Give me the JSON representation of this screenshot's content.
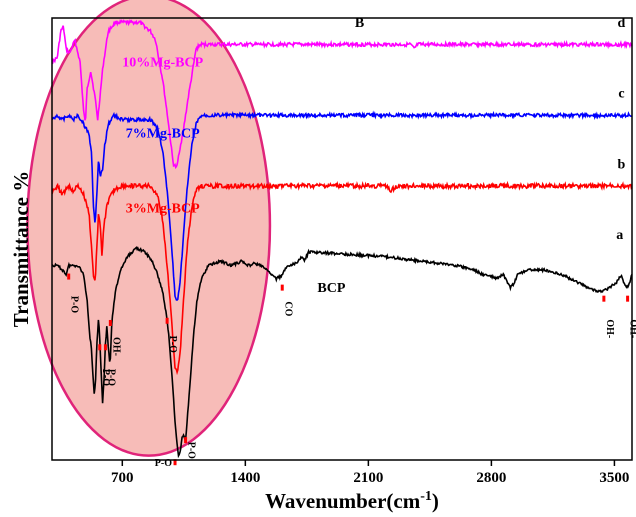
{
  "chart_data": {
    "type": "line",
    "xlabel": "Wavenumber(cm",
    "xlabel_sup": "-1",
    "xlabel_close": ")",
    "ylabel": "Transmittance %",
    "xlim": [
      300,
      3600
    ],
    "x_ticks": [
      700,
      1400,
      2100,
      2800,
      3500
    ],
    "tick_labels": [
      "700",
      "1400",
      "2100",
      "2800",
      "3500"
    ],
    "series": [
      {
        "name": "10%Mg-BCP",
        "letter": "d",
        "color": "#ff00ff",
        "baseline": 0.06,
        "noise": 0.004,
        "points": [
          [
            300,
            0.1
          ],
          [
            330,
            0.09
          ],
          [
            350,
            0.03
          ],
          [
            365,
            0.02
          ],
          [
            380,
            0.07
          ],
          [
            400,
            0.08
          ],
          [
            430,
            0.05
          ],
          [
            460,
            0.1
          ],
          [
            480,
            0.21
          ],
          [
            490,
            0.24
          ],
          [
            500,
            0.16
          ],
          [
            520,
            0.12
          ],
          [
            545,
            0.18
          ],
          [
            560,
            0.23
          ],
          [
            575,
            0.17
          ],
          [
            590,
            0.11
          ],
          [
            620,
            0.03
          ],
          [
            660,
            0.01
          ],
          [
            720,
            0.01
          ],
          [
            800,
            0.01
          ],
          [
            860,
            0.03
          ],
          [
            890,
            0.05
          ],
          [
            910,
            0.1
          ],
          [
            930,
            0.14
          ],
          [
            960,
            0.23
          ],
          [
            990,
            0.33
          ],
          [
            1010,
            0.34
          ],
          [
            1025,
            0.3
          ],
          [
            1045,
            0.26
          ],
          [
            1075,
            0.18
          ],
          [
            1100,
            0.12
          ],
          [
            1120,
            0.07
          ],
          [
            1145,
            0.06
          ],
          [
            1200,
            0.06
          ],
          [
            2340,
            0.06
          ],
          [
            2360,
            0.07
          ],
          [
            2380,
            0.06
          ],
          [
            3600,
            0.06
          ]
        ]
      },
      {
        "name": "7%Mg-BCP",
        "letter": "c",
        "color": "#0000ff",
        "baseline": 0.22,
        "noise": 0.004,
        "points": [
          [
            300,
            0.23
          ],
          [
            330,
            0.22
          ],
          [
            360,
            0.23
          ],
          [
            390,
            0.22
          ],
          [
            420,
            0.23
          ],
          [
            450,
            0.22
          ],
          [
            480,
            0.24
          ],
          [
            510,
            0.26
          ],
          [
            525,
            0.31
          ],
          [
            535,
            0.42
          ],
          [
            545,
            0.47
          ],
          [
            555,
            0.4
          ],
          [
            565,
            0.32
          ],
          [
            575,
            0.36
          ],
          [
            590,
            0.34
          ],
          [
            600,
            0.29
          ],
          [
            620,
            0.24
          ],
          [
            650,
            0.22
          ],
          [
            700,
            0.23
          ],
          [
            860,
            0.23
          ],
          [
            900,
            0.25
          ],
          [
            930,
            0.3
          ],
          [
            960,
            0.41
          ],
          [
            985,
            0.54
          ],
          [
            1000,
            0.63
          ],
          [
            1015,
            0.64
          ],
          [
            1030,
            0.59
          ],
          [
            1050,
            0.48
          ],
          [
            1070,
            0.38
          ],
          [
            1095,
            0.29
          ],
          [
            1120,
            0.24
          ],
          [
            1150,
            0.22
          ],
          [
            1200,
            0.22
          ],
          [
            3600,
            0.22
          ]
        ]
      },
      {
        "name": "3%Mg-BCP",
        "letter": "b",
        "color": "#ff0000",
        "baseline": 0.38,
        "noise": 0.005,
        "points": [
          [
            300,
            0.39
          ],
          [
            330,
            0.38
          ],
          [
            360,
            0.4
          ],
          [
            390,
            0.38
          ],
          [
            420,
            0.39
          ],
          [
            450,
            0.38
          ],
          [
            480,
            0.4
          ],
          [
            510,
            0.44
          ],
          [
            525,
            0.52
          ],
          [
            535,
            0.58
          ],
          [
            545,
            0.6
          ],
          [
            555,
            0.52
          ],
          [
            565,
            0.44
          ],
          [
            575,
            0.47
          ],
          [
            585,
            0.54
          ],
          [
            595,
            0.47
          ],
          [
            615,
            0.42
          ],
          [
            650,
            0.39
          ],
          [
            700,
            0.38
          ],
          [
            860,
            0.38
          ],
          [
            900,
            0.4
          ],
          [
            930,
            0.46
          ],
          [
            960,
            0.58
          ],
          [
            985,
            0.71
          ],
          [
            1000,
            0.79
          ],
          [
            1015,
            0.8
          ],
          [
            1030,
            0.75
          ],
          [
            1050,
            0.63
          ],
          [
            1070,
            0.51
          ],
          [
            1095,
            0.43
          ],
          [
            1120,
            0.39
          ],
          [
            1150,
            0.38
          ],
          [
            1200,
            0.38
          ],
          [
            2200,
            0.38
          ],
          [
            2230,
            0.39
          ],
          [
            2260,
            0.38
          ],
          [
            3600,
            0.38
          ]
        ]
      },
      {
        "name": "BCP",
        "letter": "a",
        "color": "#000000",
        "baseline": 0.55,
        "noise": 0.003,
        "points": [
          [
            300,
            0.56
          ],
          [
            330,
            0.56
          ],
          [
            360,
            0.57
          ],
          [
            380,
            0.58
          ],
          [
            395,
            0.56
          ],
          [
            420,
            0.56
          ],
          [
            450,
            0.56
          ],
          [
            480,
            0.58
          ],
          [
            500,
            0.64
          ],
          [
            515,
            0.72
          ],
          [
            525,
            0.75
          ],
          [
            530,
            0.79
          ],
          [
            540,
            0.85
          ],
          [
            548,
            0.82
          ],
          [
            555,
            0.74
          ],
          [
            565,
            0.68
          ],
          [
            572,
            0.73
          ],
          [
            580,
            0.8
          ],
          [
            588,
            0.87
          ],
          [
            596,
            0.82
          ],
          [
            604,
            0.74
          ],
          [
            612,
            0.7
          ],
          [
            620,
            0.74
          ],
          [
            630,
            0.79
          ],
          [
            640,
            0.69
          ],
          [
            660,
            0.62
          ],
          [
            690,
            0.57
          ],
          [
            730,
            0.54
          ],
          [
            780,
            0.52
          ],
          [
            830,
            0.53
          ],
          [
            870,
            0.55
          ],
          [
            900,
            0.58
          ],
          [
            930,
            0.62
          ],
          [
            950,
            0.67
          ],
          [
            965,
            0.72
          ],
          [
            985,
            0.82
          ],
          [
            1000,
            0.91
          ],
          [
            1010,
            0.96
          ],
          [
            1020,
            0.99
          ],
          [
            1030,
            0.98
          ],
          [
            1040,
            0.95
          ],
          [
            1050,
            0.94
          ],
          [
            1058,
            0.96
          ],
          [
            1065,
            0.93
          ],
          [
            1075,
            0.88
          ],
          [
            1090,
            0.8
          ],
          [
            1105,
            0.72
          ],
          [
            1125,
            0.64
          ],
          [
            1150,
            0.59
          ],
          [
            1190,
            0.56
          ],
          [
            1260,
            0.55
          ],
          [
            1320,
            0.56
          ],
          [
            1380,
            0.55
          ],
          [
            1420,
            0.56
          ],
          [
            1450,
            0.555
          ],
          [
            1490,
            0.56
          ],
          [
            1520,
            0.57
          ],
          [
            1550,
            0.58
          ],
          [
            1575,
            0.59
          ],
          [
            1600,
            0.585
          ],
          [
            1625,
            0.57
          ],
          [
            1650,
            0.56
          ],
          [
            1690,
            0.555
          ],
          [
            1720,
            0.54
          ],
          [
            1735,
            0.55
          ],
          [
            1760,
            0.53
          ],
          [
            1800,
            0.53
          ],
          [
            2000,
            0.535
          ],
          [
            2200,
            0.54
          ],
          [
            2400,
            0.55
          ],
          [
            2600,
            0.56
          ],
          [
            2700,
            0.57
          ],
          [
            2750,
            0.58
          ],
          [
            2800,
            0.585
          ],
          [
            2830,
            0.59
          ],
          [
            2850,
            0.585
          ],
          [
            2870,
            0.58
          ],
          [
            2890,
            0.6
          ],
          [
            2910,
            0.61
          ],
          [
            2930,
            0.6
          ],
          [
            2950,
            0.58
          ],
          [
            3000,
            0.57
          ],
          [
            3100,
            0.57
          ],
          [
            3200,
            0.58
          ],
          [
            3300,
            0.6
          ],
          [
            3380,
            0.615
          ],
          [
            3430,
            0.62
          ],
          [
            3470,
            0.61
          ],
          [
            3510,
            0.6
          ],
          [
            3540,
            0.58
          ],
          [
            3555,
            0.6
          ],
          [
            3570,
            0.61
          ],
          [
            3585,
            0.6
          ],
          [
            3600,
            0.58
          ]
        ]
      }
    ],
    "series_label_at": [
      {
        "x": 930,
        "y": 0.11,
        "anchor": "middle"
      },
      {
        "x": 930,
        "y": 0.27,
        "anchor": "middle"
      },
      {
        "x": 930,
        "y": 0.44,
        "anchor": "middle"
      },
      {
        "x": 1810,
        "y": 0.62,
        "anchor": "start"
      }
    ],
    "letter_at": [
      {
        "x": 3540,
        "y": 0.02
      },
      {
        "x": 3540,
        "y": 0.18
      },
      {
        "x": 3540,
        "y": 0.34
      },
      {
        "x": 3530,
        "y": 0.5
      }
    ],
    "annotation_label": {
      "text": "B",
      "x": 2050,
      "y": 0.02,
      "color": "#00008b"
    },
    "peak_annotations": [
      {
        "label": "P-O",
        "x": 395,
        "y": 0.585,
        "text_y": 0.655
      },
      {
        "label": "P-O",
        "x": 572,
        "y": 0.745,
        "text_y": 0.82
      },
      {
        "label": "P-O",
        "x": 604,
        "y": 0.745,
        "text_y": 0.82
      },
      {
        "label": "OH-",
        "x": 632,
        "y": 0.69,
        "text_y": 0.75
      },
      {
        "label": "P-O",
        "x": 955,
        "y": 0.685,
        "text_y": 0.745
      },
      {
        "label": "CO",
        "x": 1610,
        "y": 0.61,
        "text_y": 0.665
      },
      {
        "label": "OH-",
        "x": 3440,
        "y": 0.635,
        "text_y": 0.71
      },
      {
        "label": "OH-",
        "x": 3575,
        "y": 0.635,
        "text_y": 0.71
      },
      {
        "label": "P-O",
        "x": 1000,
        "y": 1.005,
        "text_y": 1.005,
        "horizontal": true
      },
      {
        "label": "P-O",
        "x": 1060,
        "y": 0.955,
        "text_y": 0.985
      }
    ],
    "highlight_ellipse": {
      "cx": 850,
      "cy": 0.47,
      "rx": 690,
      "ry": 0.52,
      "fill": "#f4a6a0",
      "stroke": "#e0247a"
    }
  }
}
